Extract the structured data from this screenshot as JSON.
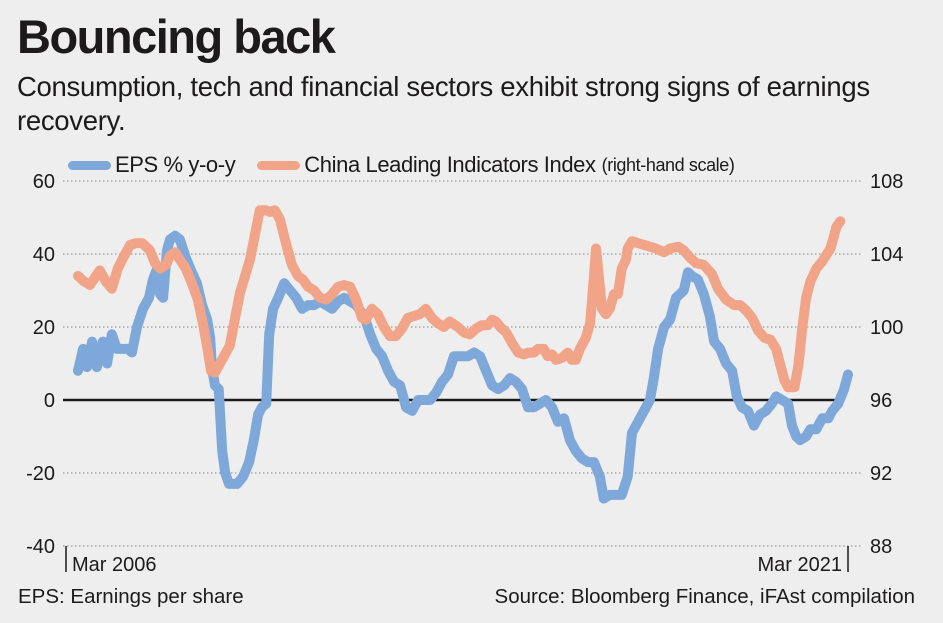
{
  "title": "Bouncing back",
  "subtitle": "Consumption, tech and financial sectors exhibit strong signs of earnings recovery.",
  "footer": {
    "note": "EPS: Earnings per share",
    "source": "Source: Bloomberg Finance, iFAst compilation"
  },
  "chart_data": {
    "type": "line",
    "title": "Bouncing back",
    "subtitle": "Consumption, tech and financial sectors exhibit strong signs of earnings recovery.",
    "x_unit": "months since Mar 2006",
    "x_range": [
      0,
      180
    ],
    "x_tick_labels": [
      {
        "x": 0,
        "label": "Mar 2006"
      },
      {
        "x": 180,
        "label": "Mar 2021"
      }
    ],
    "left_axis": {
      "ylim": [
        -40,
        60
      ],
      "ticks": [
        60,
        40,
        20,
        0,
        -20,
        -40
      ],
      "tick_labels": [
        "60",
        "40",
        "20",
        "0",
        "-20",
        "-40"
      ]
    },
    "right_axis": {
      "ylim": [
        88,
        108
      ],
      "ticks": [
        108,
        104,
        100,
        96,
        92,
        88
      ],
      "tick_labels": [
        "108",
        "104",
        "100",
        "96",
        "92",
        "88"
      ]
    },
    "grid": true,
    "legend": {
      "placement": "top-left",
      "note": "(right-hand scale)"
    },
    "series": [
      {
        "name": "EPS % y-o-y",
        "axis": "left",
        "color": "#7fa8da",
        "points": [
          [
            0,
            8
          ],
          [
            1.2,
            14
          ],
          [
            2.1,
            9
          ],
          [
            3.3,
            16
          ],
          [
            4.4,
            9
          ],
          [
            5.8,
            16
          ],
          [
            6.8,
            10
          ],
          [
            7.9,
            18
          ],
          [
            9.1,
            14
          ],
          [
            10.3,
            14
          ],
          [
            11.7,
            14
          ],
          [
            12.6,
            13
          ],
          [
            13.8,
            20
          ],
          [
            15.2,
            25
          ],
          [
            16.6,
            28
          ],
          [
            17.5,
            33
          ],
          [
            18.5,
            36
          ],
          [
            19.2,
            29
          ],
          [
            19.9,
            28
          ],
          [
            20.8,
            41
          ],
          [
            21.5,
            44
          ],
          [
            22.7,
            45
          ],
          [
            23.8,
            44
          ],
          [
            25.2,
            39
          ],
          [
            26.6,
            35
          ],
          [
            27.8,
            32
          ],
          [
            29,
            26
          ],
          [
            30.2,
            22
          ],
          [
            30.9,
            17
          ],
          [
            31.3,
            9
          ],
          [
            32,
            4
          ],
          [
            32.9,
            3
          ],
          [
            33.7,
            -14
          ],
          [
            34.4,
            -20
          ],
          [
            35.3,
            -23
          ],
          [
            36.2,
            -23
          ],
          [
            37.2,
            -23
          ],
          [
            38.6,
            -21
          ],
          [
            40,
            -17
          ],
          [
            41.1,
            -11
          ],
          [
            42.1,
            -4
          ],
          [
            43,
            -2
          ],
          [
            44,
            -1
          ],
          [
            44.7,
            18
          ],
          [
            45.6,
            25
          ],
          [
            46.8,
            28
          ],
          [
            48.2,
            32
          ],
          [
            49.6,
            30
          ],
          [
            51,
            28
          ],
          [
            52.4,
            25
          ],
          [
            53.8,
            26
          ],
          [
            55.2,
            26
          ],
          [
            56.6,
            27
          ],
          [
            58,
            26
          ],
          [
            59.4,
            25
          ],
          [
            60.8,
            27
          ],
          [
            62.2,
            28
          ],
          [
            63.6,
            27
          ],
          [
            65,
            26
          ],
          [
            66.9,
            23
          ],
          [
            68.3,
            18
          ],
          [
            69.7,
            14
          ],
          [
            71.1,
            12
          ],
          [
            72.5,
            8
          ],
          [
            73.9,
            5
          ],
          [
            75.3,
            4
          ],
          [
            76.7,
            -2
          ],
          [
            78.1,
            -3
          ],
          [
            79.5,
            0
          ],
          [
            80.9,
            0
          ],
          [
            82.3,
            0
          ],
          [
            83.7,
            2
          ],
          [
            85.1,
            5
          ],
          [
            86.5,
            7
          ],
          [
            87.9,
            12
          ],
          [
            89.3,
            12
          ],
          [
            91.2,
            12
          ],
          [
            92.6,
            13
          ],
          [
            94,
            12
          ],
          [
            95.4,
            8
          ],
          [
            96.8,
            4
          ],
          [
            98.2,
            3
          ],
          [
            99.6,
            4
          ],
          [
            101,
            6
          ],
          [
            102.4,
            5
          ],
          [
            103.8,
            3
          ],
          [
            105.2,
            -2
          ],
          [
            106.6,
            -2
          ],
          [
            108,
            -1
          ],
          [
            109.4,
            0
          ],
          [
            110.8,
            -2
          ],
          [
            112.2,
            -6
          ],
          [
            113.6,
            -5
          ],
          [
            115,
            -11
          ],
          [
            116.4,
            -14
          ],
          [
            117.8,
            -16
          ],
          [
            119.2,
            -17
          ],
          [
            120.6,
            -17
          ],
          [
            122,
            -21
          ],
          [
            122.9,
            -27
          ],
          [
            124.3,
            -26
          ],
          [
            125.7,
            -26
          ],
          [
            127.1,
            -26
          ],
          [
            128.5,
            -21
          ],
          [
            129.5,
            -9
          ],
          [
            130.9,
            -6
          ],
          [
            132.3,
            -3
          ],
          [
            133.7,
            0
          ],
          [
            134.6,
            6
          ],
          [
            135.6,
            14
          ],
          [
            137,
            20
          ],
          [
            138.4,
            22
          ],
          [
            139.8,
            28
          ],
          [
            140.7,
            29
          ],
          [
            141.6,
            30
          ],
          [
            142.6,
            35
          ],
          [
            143.5,
            34
          ],
          [
            144.9,
            33
          ],
          [
            146.3,
            29
          ],
          [
            147.7,
            23
          ],
          [
            148.7,
            16
          ],
          [
            150.1,
            14
          ],
          [
            151.5,
            10
          ],
          [
            152.9,
            8
          ],
          [
            154,
            1
          ],
          [
            155.2,
            -2
          ],
          [
            156.6,
            -3
          ],
          [
            158,
            -7
          ],
          [
            159.4,
            -4
          ],
          [
            160.8,
            -3
          ],
          [
            162.2,
            -1
          ],
          [
            163.2,
            1
          ],
          [
            164.6,
            0
          ],
          [
            166,
            -1
          ],
          [
            166.9,
            -7
          ],
          [
            167.9,
            -10
          ],
          [
            168.8,
            -11
          ],
          [
            170.2,
            -10
          ],
          [
            171.2,
            -8
          ],
          [
            172.6,
            -8
          ],
          [
            174,
            -5
          ],
          [
            175.4,
            -5
          ],
          [
            176.3,
            -3
          ],
          [
            177.7,
            -1
          ],
          [
            179.1,
            3
          ],
          [
            180,
            7
          ]
        ]
      },
      {
        "name": "China Leading Indicators Index",
        "axis": "right",
        "color": "#f2a489",
        "points": [
          [
            0,
            102.8
          ],
          [
            1.4,
            102.5
          ],
          [
            2.8,
            102.3
          ],
          [
            4.2,
            102.8
          ],
          [
            5.1,
            103.1
          ],
          [
            6.5,
            102.5
          ],
          [
            7.9,
            102.1
          ],
          [
            9.3,
            103.2
          ],
          [
            10.8,
            103.9
          ],
          [
            12.2,
            104.5
          ],
          [
            13.6,
            104.6
          ],
          [
            15,
            104.6
          ],
          [
            16.8,
            104.2
          ],
          [
            18,
            103.5
          ],
          [
            19.2,
            103.2
          ],
          [
            20.6,
            103.4
          ],
          [
            21.5,
            103.9
          ],
          [
            22.7,
            104.1
          ],
          [
            23.8,
            103.7
          ],
          [
            25.2,
            103.2
          ],
          [
            26.6,
            102.4
          ],
          [
            28,
            101.5
          ],
          [
            29.2,
            100.2
          ],
          [
            30.2,
            98.9
          ],
          [
            31.1,
            97.6
          ],
          [
            32,
            97.5
          ],
          [
            33.2,
            98
          ],
          [
            34.6,
            98.6
          ],
          [
            35.5,
            99
          ],
          [
            36.9,
            100.7
          ],
          [
            37.9,
            101.9
          ],
          [
            38.8,
            102.6
          ],
          [
            40.2,
            103.7
          ],
          [
            41.4,
            105.1
          ],
          [
            42.5,
            106.4
          ],
          [
            43.9,
            106.4
          ],
          [
            44.9,
            106.3
          ],
          [
            46,
            106.4
          ],
          [
            47.2,
            105.9
          ],
          [
            48.6,
            104.6
          ],
          [
            50,
            103.4
          ],
          [
            51.4,
            102.8
          ],
          [
            52.6,
            102.6
          ],
          [
            53.8,
            102.2
          ],
          [
            55.2,
            102
          ],
          [
            56.6,
            101.6
          ],
          [
            58,
            101.5
          ],
          [
            59.4,
            101.8
          ],
          [
            60.8,
            102.2
          ],
          [
            62.2,
            102.3
          ],
          [
            63.6,
            102.2
          ],
          [
            65,
            101.5
          ],
          [
            66.4,
            100.5
          ],
          [
            67.3,
            100.4
          ],
          [
            68.7,
            101
          ],
          [
            70.1,
            100.7
          ],
          [
            71.5,
            100
          ],
          [
            72.9,
            99.5
          ],
          [
            74.3,
            99.5
          ],
          [
            75.7,
            99.9
          ],
          [
            77.1,
            100.5
          ],
          [
            78.5,
            100.6
          ],
          [
            79.9,
            100.7
          ],
          [
            81.3,
            101
          ],
          [
            82.7,
            100.5
          ],
          [
            84.1,
            100.2
          ],
          [
            85.5,
            100
          ],
          [
            86.9,
            100.3
          ],
          [
            88.8,
            100
          ],
          [
            90.2,
            99.7
          ],
          [
            91.6,
            99.6
          ],
          [
            93,
            99.9
          ],
          [
            94.4,
            100.1
          ],
          [
            95.8,
            100.1
          ],
          [
            96.8,
            100.4
          ],
          [
            97.7,
            100.3
          ],
          [
            98.7,
            100
          ],
          [
            100.1,
            99.7
          ],
          [
            101.5,
            99.1
          ],
          [
            102.9,
            98.6
          ],
          [
            104.3,
            98.5
          ],
          [
            105.2,
            98.6
          ],
          [
            106.6,
            98.6
          ],
          [
            107.5,
            98.8
          ],
          [
            108.9,
            98.8
          ],
          [
            109.8,
            98.4
          ],
          [
            110.8,
            98.5
          ],
          [
            111.7,
            98.2
          ],
          [
            113.1,
            98.3
          ],
          [
            114.5,
            98.6
          ],
          [
            115.4,
            98.2
          ],
          [
            116.4,
            98.2
          ],
          [
            117.3,
            98.8
          ],
          [
            118.7,
            99.4
          ],
          [
            119.7,
            100.2
          ],
          [
            120.4,
            102.1
          ],
          [
            121.1,
            104.3
          ],
          [
            121.8,
            102.7
          ],
          [
            122.5,
            101
          ],
          [
            123.4,
            100.7
          ],
          [
            124.3,
            101
          ],
          [
            125.3,
            101.8
          ],
          [
            126.2,
            101.8
          ],
          [
            127.1,
            103.2
          ],
          [
            128.1,
            103.7
          ],
          [
            128.5,
            104.3
          ],
          [
            129.5,
            104.7
          ],
          [
            130.9,
            104.6
          ],
          [
            132.3,
            104.5
          ],
          [
            133.7,
            104.4
          ],
          [
            135.1,
            104.3
          ],
          [
            137,
            104.1
          ],
          [
            138.4,
            104.3
          ],
          [
            140.3,
            104.4
          ],
          [
            141.6,
            104.2
          ],
          [
            143.1,
            103.8
          ],
          [
            144.5,
            103.5
          ],
          [
            146.3,
            103.4
          ],
          [
            148.2,
            102.9
          ],
          [
            149.6,
            102.1
          ],
          [
            151.5,
            101.5
          ],
          [
            153.4,
            101.2
          ],
          [
            154.8,
            101.2
          ],
          [
            156.2,
            100.9
          ],
          [
            157.6,
            100.5
          ],
          [
            159,
            99.8
          ],
          [
            160.5,
            99.4
          ],
          [
            161.9,
            99.3
          ],
          [
            163.2,
            98.8
          ],
          [
            164.2,
            97.9
          ],
          [
            165.1,
            97.1
          ],
          [
            166,
            96.7
          ],
          [
            167.5,
            96.7
          ],
          [
            168.4,
            97.9
          ],
          [
            169.3,
            99.9
          ],
          [
            170.2,
            101.6
          ],
          [
            171.2,
            102.5
          ],
          [
            172.6,
            103.2
          ],
          [
            174,
            103.6
          ],
          [
            175.9,
            104.3
          ],
          [
            177.3,
            105.5
          ],
          [
            178.2,
            105.8
          ]
        ]
      }
    ]
  }
}
